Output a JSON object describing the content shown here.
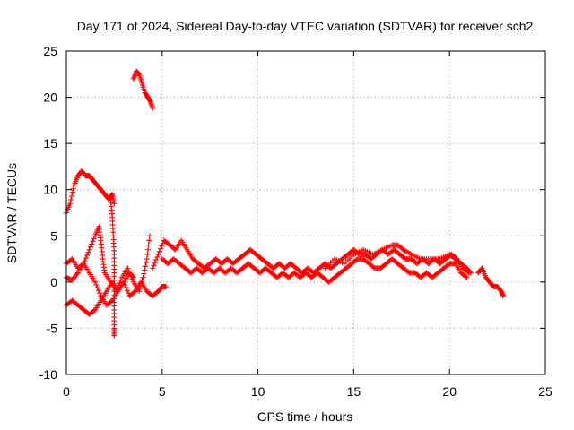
{
  "chart_data": {
    "type": "scatter",
    "title": "Day 171 of 2024, Sidereal Day-to-day VTEC variation (SDTVAR) for receiver sch2",
    "xlabel": "GPS time / hours",
    "ylabel": "SDTVAR / TECUs",
    "xlim": [
      0,
      25
    ],
    "ylim": [
      -10,
      25
    ],
    "xticks": [
      0,
      5,
      10,
      15,
      20,
      25
    ],
    "yticks": [
      -10,
      -5,
      0,
      5,
      10,
      15,
      20,
      25
    ],
    "xtick_labels": [
      "0",
      "5",
      "10",
      "15",
      "20",
      "25"
    ],
    "ytick_labels": [
      "-10",
      "-5",
      "0",
      "5",
      "10",
      "15",
      "20",
      "25"
    ],
    "grid": true,
    "marker": "plus",
    "color": "#ff0000",
    "series": [
      {
        "name": "track-a",
        "points": [
          [
            0.0,
            7.5
          ],
          [
            0.2,
            8.5
          ],
          [
            0.4,
            10.5
          ],
          [
            0.6,
            11.5
          ],
          [
            0.8,
            12.0
          ],
          [
            1.0,
            11.5
          ],
          [
            1.2,
            11.5
          ],
          [
            1.4,
            11.0
          ],
          [
            1.6,
            10.5
          ],
          [
            1.8,
            10.0
          ],
          [
            2.0,
            9.5
          ],
          [
            2.2,
            9.0
          ],
          [
            2.4,
            9.5
          ],
          [
            2.5,
            8.5
          ]
        ]
      },
      {
        "name": "track-b",
        "points": [
          [
            2.3,
            9.0
          ],
          [
            2.4,
            7.0
          ],
          [
            2.45,
            5.0
          ],
          [
            2.5,
            3.0
          ],
          [
            2.5,
            1.0
          ],
          [
            2.5,
            -1.0
          ],
          [
            2.5,
            -3.0
          ],
          [
            2.5,
            -5.0
          ],
          [
            2.5,
            -5.8
          ]
        ]
      },
      {
        "name": "track-c",
        "points": [
          [
            0.0,
            0.5
          ],
          [
            0.3,
            0.2
          ],
          [
            0.6,
            1.0
          ],
          [
            0.9,
            2.0
          ],
          [
            1.2,
            3.5
          ],
          [
            1.5,
            5.0
          ],
          [
            1.7,
            6.0
          ],
          [
            1.8,
            4.5
          ],
          [
            1.9,
            2.5
          ],
          [
            2.0,
            1.0
          ],
          [
            2.3,
            0.0
          ],
          [
            2.6,
            -1.0
          ],
          [
            2.9,
            0.5
          ],
          [
            3.2,
            1.5
          ],
          [
            3.5,
            0.0
          ],
          [
            3.8,
            -1.0
          ],
          [
            4.0,
            0.5
          ],
          [
            4.2,
            2.5
          ],
          [
            4.35,
            5.0
          ]
        ]
      },
      {
        "name": "track-d",
        "points": [
          [
            0.0,
            -2.5
          ],
          [
            0.3,
            -2.0
          ],
          [
            0.6,
            -2.5
          ],
          [
            0.9,
            -3.0
          ],
          [
            1.2,
            -3.5
          ],
          [
            1.5,
            -3.0
          ],
          [
            1.8,
            -2.0
          ],
          [
            2.1,
            -1.0
          ],
          [
            2.4,
            0.0
          ],
          [
            2.7,
            -1.0
          ],
          [
            3.0,
            0.0
          ],
          [
            3.3,
            -1.5
          ],
          [
            3.6,
            -1.0
          ],
          [
            3.9,
            0.0
          ],
          [
            4.2,
            -1.0
          ],
          [
            4.5,
            -1.5
          ],
          [
            4.8,
            -1.0
          ],
          [
            5.0,
            -0.5
          ],
          [
            5.2,
            -0.5
          ]
        ]
      },
      {
        "name": "track-e",
        "points": [
          [
            0.0,
            2.0
          ],
          [
            0.3,
            2.5
          ],
          [
            0.6,
            1.5
          ],
          [
            0.9,
            2.0
          ],
          [
            1.2,
            1.0
          ],
          [
            1.5,
            0.0
          ],
          [
            1.8,
            -1.5
          ],
          [
            2.1,
            -2.5
          ],
          [
            2.4,
            -2.0
          ],
          [
            2.7,
            -1.0
          ],
          [
            3.0,
            0.0
          ],
          [
            3.3,
            1.0
          ],
          [
            3.5,
            0.5
          ]
        ]
      },
      {
        "name": "track-f",
        "points": [
          [
            3.5,
            22.0
          ],
          [
            3.65,
            22.8
          ],
          [
            3.8,
            22.5
          ],
          [
            3.95,
            21.5
          ],
          [
            4.1,
            20.5
          ],
          [
            4.25,
            20.0
          ],
          [
            4.4,
            19.5
          ],
          [
            4.5,
            18.8
          ]
        ]
      },
      {
        "name": "track-g",
        "points": [
          [
            4.5,
            1.5
          ],
          [
            4.8,
            3.0
          ],
          [
            5.1,
            4.5
          ],
          [
            5.4,
            4.0
          ],
          [
            5.7,
            3.5
          ],
          [
            6.0,
            4.5
          ],
          [
            6.3,
            3.5
          ],
          [
            6.6,
            2.5
          ],
          [
            6.9,
            2.0
          ],
          [
            7.2,
            1.5
          ],
          [
            7.5,
            2.0
          ],
          [
            7.8,
            2.5
          ],
          [
            8.1,
            2.0
          ],
          [
            8.4,
            2.5
          ],
          [
            8.7,
            2.0
          ],
          [
            9.0,
            2.5
          ],
          [
            9.3,
            3.0
          ],
          [
            9.6,
            3.5
          ],
          [
            9.9,
            3.0
          ],
          [
            10.2,
            2.5
          ],
          [
            10.5,
            2.0
          ],
          [
            10.8,
            1.5
          ],
          [
            11.1,
            2.0
          ],
          [
            11.4,
            1.5
          ],
          [
            11.7,
            2.0
          ],
          [
            12.0,
            1.5
          ],
          [
            12.3,
            1.0
          ],
          [
            12.6,
            1.5
          ],
          [
            12.9,
            1.0
          ],
          [
            13.2,
            1.5
          ],
          [
            13.5,
            2.0
          ],
          [
            13.8,
            1.5
          ],
          [
            14.1,
            2.0
          ],
          [
            14.4,
            2.5
          ],
          [
            14.7,
            3.0
          ],
          [
            15.0,
            3.5
          ],
          [
            15.3,
            3.0
          ],
          [
            15.6,
            3.0
          ],
          [
            15.9,
            2.5
          ],
          [
            16.2,
            3.0
          ],
          [
            16.5,
            3.5
          ],
          [
            16.8,
            3.0
          ],
          [
            17.1,
            3.5
          ],
          [
            17.4,
            3.0
          ],
          [
            17.7,
            2.5
          ],
          [
            18.0,
            2.5
          ],
          [
            18.3,
            2.0
          ],
          [
            18.6,
            2.5
          ],
          [
            18.9,
            2.0
          ],
          [
            19.2,
            2.5
          ],
          [
            19.5,
            2.0
          ],
          [
            19.8,
            2.5
          ],
          [
            20.1,
            3.0
          ],
          [
            20.4,
            2.5
          ],
          [
            20.7,
            1.5
          ],
          [
            21.0,
            1.0
          ]
        ]
      },
      {
        "name": "track-h",
        "points": [
          [
            5.0,
            2.5
          ],
          [
            5.3,
            2.0
          ],
          [
            5.6,
            2.5
          ],
          [
            5.9,
            2.0
          ],
          [
            6.2,
            1.5
          ],
          [
            6.5,
            1.0
          ],
          [
            6.8,
            1.5
          ],
          [
            7.1,
            1.0
          ],
          [
            7.4,
            1.5
          ],
          [
            7.7,
            1.0
          ],
          [
            8.0,
            1.5
          ],
          [
            8.3,
            1.0
          ],
          [
            8.6,
            1.5
          ],
          [
            8.9,
            1.0
          ],
          [
            9.2,
            1.5
          ],
          [
            9.5,
            2.0
          ],
          [
            9.8,
            1.5
          ],
          [
            10.1,
            1.0
          ],
          [
            10.4,
            1.5
          ],
          [
            10.7,
            1.0
          ],
          [
            11.0,
            0.5
          ],
          [
            11.3,
            1.0
          ],
          [
            11.6,
            0.5
          ],
          [
            11.9,
            1.0
          ],
          [
            12.2,
            0.5
          ],
          [
            12.5,
            1.0
          ],
          [
            12.8,
            0.5
          ],
          [
            13.1,
            1.0
          ],
          [
            13.4,
            0.5
          ],
          [
            13.7,
            0.0
          ],
          [
            14.0,
            0.5
          ],
          [
            14.3,
            1.0
          ],
          [
            14.6,
            1.5
          ],
          [
            14.9,
            2.0
          ],
          [
            15.2,
            2.5
          ],
          [
            15.5,
            2.5
          ],
          [
            15.8,
            2.0
          ],
          [
            16.1,
            1.5
          ],
          [
            16.4,
            1.5
          ],
          [
            16.7,
            2.0
          ],
          [
            17.0,
            2.5
          ],
          [
            17.3,
            2.0
          ],
          [
            17.6,
            1.5
          ],
          [
            17.9,
            1.0
          ],
          [
            18.2,
            1.0
          ],
          [
            18.5,
            0.5
          ],
          [
            18.8,
            1.0
          ],
          [
            19.1,
            0.5
          ],
          [
            19.4,
            1.0
          ],
          [
            19.7,
            1.5
          ],
          [
            20.0,
            2.0
          ],
          [
            20.3,
            2.0
          ],
          [
            20.6,
            1.0
          ],
          [
            20.9,
            0.5
          ]
        ]
      },
      {
        "name": "track-i",
        "points": [
          [
            13.5,
            1.5
          ],
          [
            14.0,
            2.5
          ],
          [
            14.5,
            2.0
          ],
          [
            15.0,
            3.0
          ],
          [
            15.5,
            3.5
          ],
          [
            16.0,
            3.0
          ],
          [
            16.5,
            3.5
          ],
          [
            17.0,
            4.0
          ],
          [
            17.3,
            4.0
          ],
          [
            17.6,
            3.5
          ],
          [
            18.0,
            3.0
          ],
          [
            18.5,
            2.5
          ],
          [
            19.0,
            2.5
          ],
          [
            19.5,
            2.5
          ],
          [
            20.0,
            3.0
          ],
          [
            20.3,
            2.5
          ],
          [
            20.6,
            2.0
          ],
          [
            20.9,
            1.5
          ],
          [
            21.1,
            1.0
          ]
        ]
      },
      {
        "name": "track-j",
        "points": [
          [
            21.5,
            1.0
          ],
          [
            21.7,
            1.5
          ],
          [
            21.9,
            0.5
          ],
          [
            22.1,
            0.0
          ],
          [
            22.3,
            -0.5
          ],
          [
            22.5,
            -0.5
          ],
          [
            22.7,
            -1.0
          ],
          [
            22.8,
            -1.5
          ]
        ]
      }
    ]
  }
}
